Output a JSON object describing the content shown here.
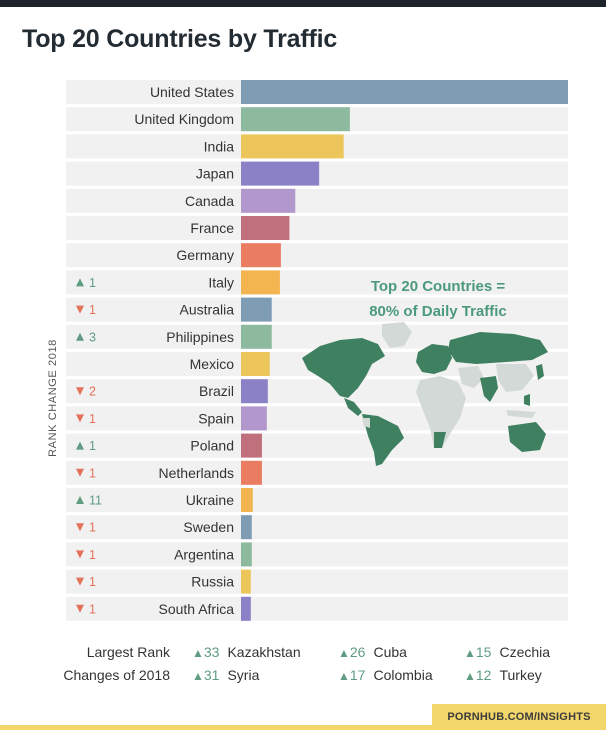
{
  "title": "Top 20 Countries by Traffic",
  "rank_axis_label": "RANK CHANGE 2018",
  "callout": {
    "line1": "Top 20 Countries =",
    "line2": "80% of Daily Traffic"
  },
  "colors": {
    "up": "#5f9c82",
    "down": "#e3725a",
    "row_background": "#f1f1f1",
    "callout": "#4c9a7c",
    "map_highlight": "#3f8060",
    "map_other": "#d3d9d6",
    "source_tag": "#f2d66a"
  },
  "chart_data": {
    "type": "bar",
    "orientation": "horizontal",
    "title": "Top 20 Countries by Traffic",
    "xlim": [
      0,
      100
    ],
    "values_are_relative_to_top": true,
    "categories": [
      "United States",
      "United Kingdom",
      "India",
      "Japan",
      "Canada",
      "France",
      "Germany",
      "Italy",
      "Australia",
      "Philippines",
      "Mexico",
      "Brazil",
      "Spain",
      "Poland",
      "Netherlands",
      "Ukraine",
      "Sweden",
      "Argentina",
      "Russia",
      "South Africa"
    ],
    "values": [
      100,
      33.3,
      31.4,
      23.9,
      16.6,
      14.8,
      12.2,
      11.9,
      9.4,
      9.4,
      8.8,
      8.2,
      7.9,
      6.4,
      6.4,
      3.6,
      3.3,
      3.3,
      3.0,
      3.0
    ],
    "bar_colors": [
      "#7f9cb5",
      "#8db99e",
      "#ecc65a",
      "#8a81c6",
      "#b297cd",
      "#c0707d",
      "#ea7c62",
      "#f3b550",
      "#7f9cb5",
      "#8db99e",
      "#ecc65a",
      "#8a81c6",
      "#b297cd",
      "#c0707d",
      "#ea7c62",
      "#f3b550",
      "#7f9cb5",
      "#8db99e",
      "#ecc65a",
      "#8a81c6"
    ],
    "rank_changes": [
      null,
      null,
      null,
      null,
      null,
      null,
      null,
      {
        "direction": "up",
        "value": "1"
      },
      {
        "direction": "down",
        "value": "1"
      },
      {
        "direction": "up",
        "value": "3"
      },
      null,
      {
        "direction": "down",
        "value": "2"
      },
      {
        "direction": "down",
        "value": "1"
      },
      {
        "direction": "up",
        "value": "1"
      },
      {
        "direction": "down",
        "value": "1"
      },
      {
        "direction": "up",
        "value": "11"
      },
      {
        "direction": "down",
        "value": "1"
      },
      {
        "direction": "down",
        "value": "1"
      },
      {
        "direction": "down",
        "value": "1"
      },
      {
        "direction": "down",
        "value": "1"
      }
    ],
    "grid": false
  },
  "footer": {
    "label_line1": "Largest Rank",
    "label_line2": "Changes of 2018",
    "changes": [
      {
        "value": "33",
        "country": "Kazakhstan"
      },
      {
        "value": "26",
        "country": "Cuba"
      },
      {
        "value": "15",
        "country": "Czechia"
      },
      {
        "value": "31",
        "country": "Syria"
      },
      {
        "value": "17",
        "country": "Colombia"
      },
      {
        "value": "12",
        "country": "Turkey"
      }
    ]
  },
  "source": "PORNHUB.COM/INSIGHTS"
}
